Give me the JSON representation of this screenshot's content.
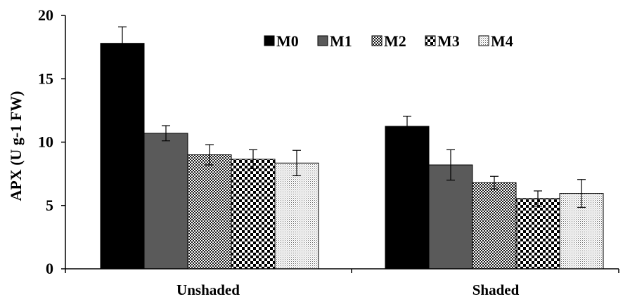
{
  "chart_data": {
    "type": "bar",
    "categories": [
      "Unshaded",
      "Shaded"
    ],
    "ylabel": "APX (U g-1 FW)",
    "xlabel": "",
    "ylim": [
      0,
      20
    ],
    "yticks": [
      0,
      5,
      10,
      15,
      20
    ],
    "legend_position": "top-right",
    "grid": false,
    "error_bars": true,
    "series": [
      {
        "name": "M0",
        "pattern": "solid-black",
        "values": [
          17.8,
          11.25
        ],
        "errors": [
          1.3,
          0.8
        ]
      },
      {
        "name": "M1",
        "pattern": "solid-gray",
        "values": [
          10.7,
          8.2
        ],
        "errors": [
          0.6,
          1.2
        ]
      },
      {
        "name": "M2",
        "pattern": "fine-checker",
        "values": [
          9.0,
          6.8
        ],
        "errors": [
          0.8,
          0.5
        ]
      },
      {
        "name": "M3",
        "pattern": "coarse-checker",
        "values": [
          8.65,
          5.55
        ],
        "errors": [
          0.75,
          0.6
        ]
      },
      {
        "name": "M4",
        "pattern": "light-dots",
        "values": [
          8.35,
          5.95
        ],
        "errors": [
          1.0,
          1.1
        ]
      }
    ]
  }
}
